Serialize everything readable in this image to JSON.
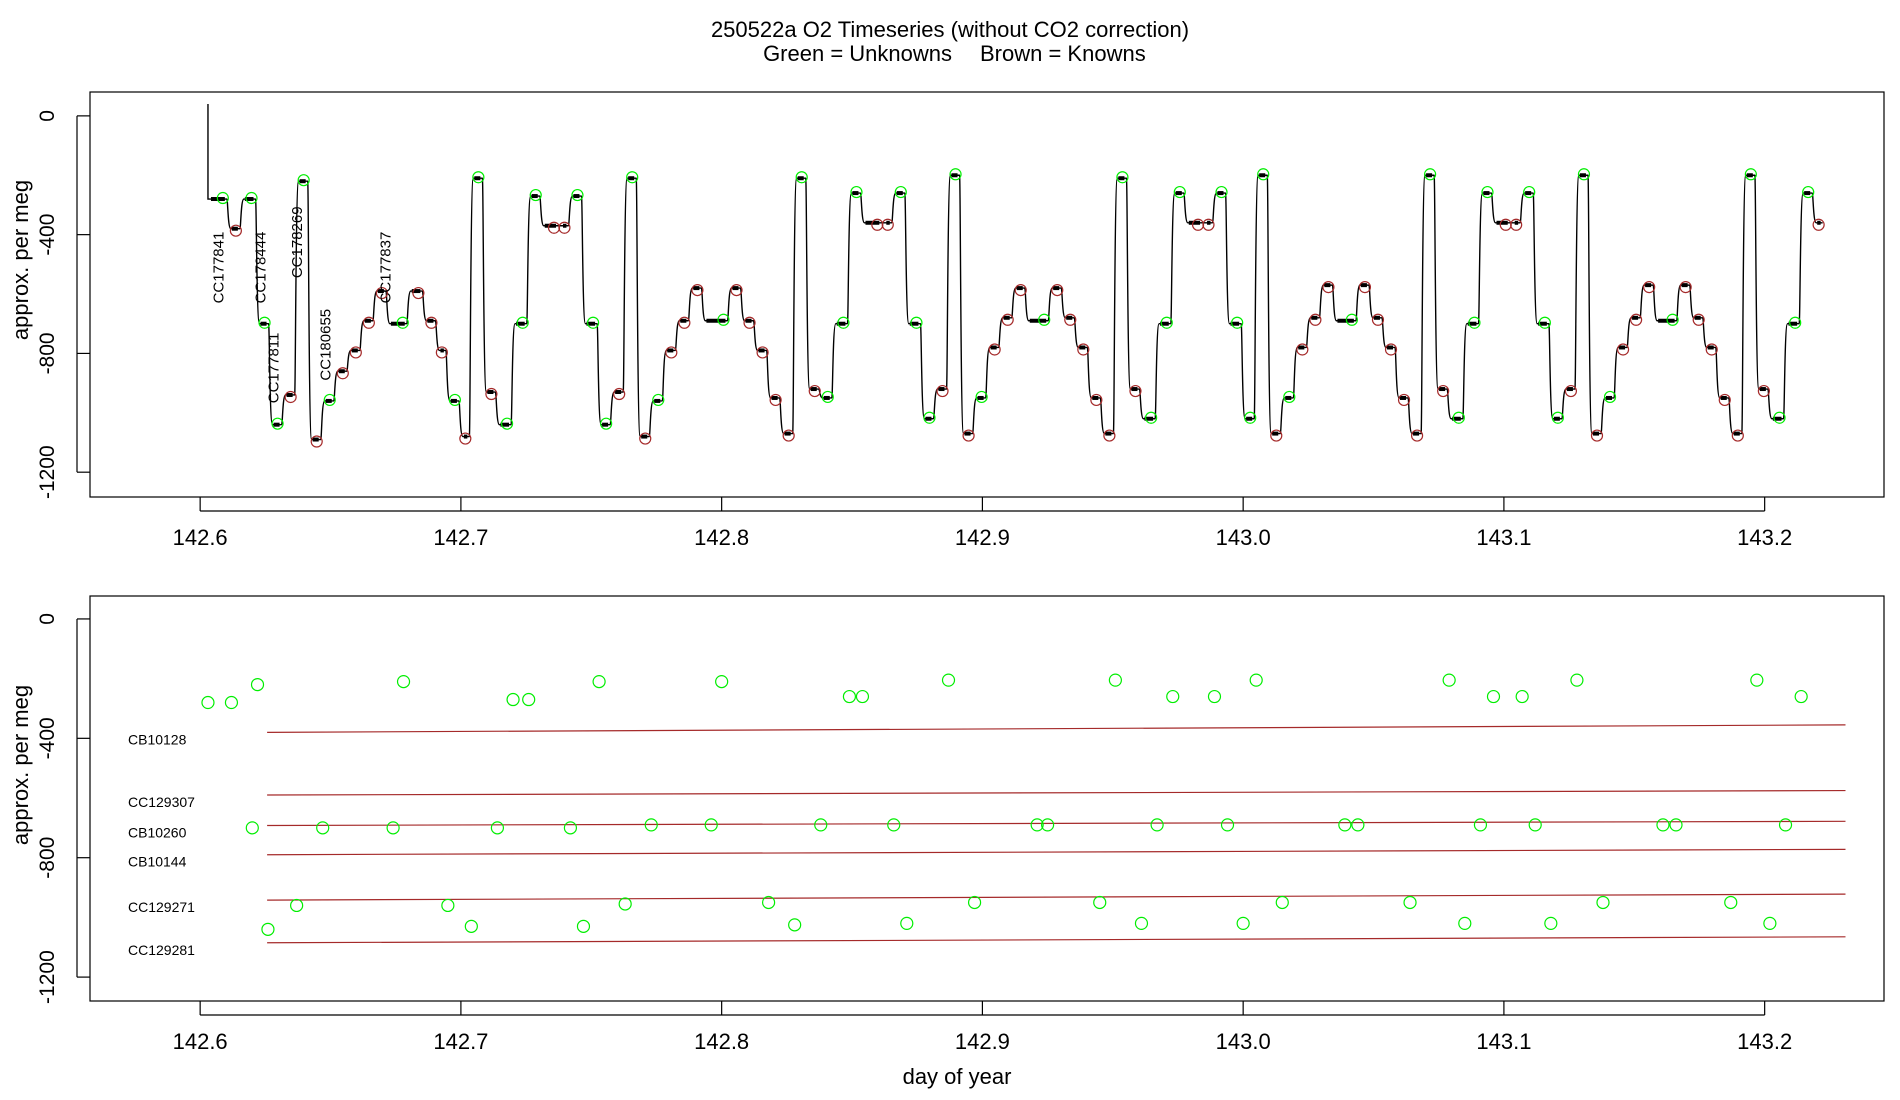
{
  "colors": {
    "unknown": "#00ee00",
    "known": "#a52a2a",
    "trace": "#000000",
    "axis": "#000000"
  },
  "chart_data": [
    {
      "type": "line",
      "panel": "top",
      "title": "250522a   O2 Timeseries (without CO2 correction)",
      "subtitle_unknowns": "Green = Unknowns",
      "subtitle_knowns": "Brown = Knowns",
      "xlabel": "",
      "ylabel": "approx. per meg",
      "xlim": [
        142.58,
        143.245
      ],
      "ylim": [
        -1260,
        40
      ],
      "x_ticks": [
        142.6,
        142.7,
        142.8,
        142.9,
        143.0,
        143.1,
        143.2
      ],
      "x_tick_labels": [
        "142.6",
        "142.7",
        "142.8",
        "142.9",
        "143.0",
        "143.1",
        "143.2"
      ],
      "y_ticks": [
        0,
        -400,
        -800,
        -1200
      ],
      "y_tick_labels": [
        "0",
        "-400",
        "-800",
        "-1200"
      ],
      "start_spike": {
        "x": 142.603,
        "y_top": 40,
        "y_start": -280
      },
      "trace_steps": [
        {
          "x": 142.603,
          "y": -280,
          "kind": "unknown"
        },
        {
          "x": 142.611,
          "y": -380,
          "kind": "known"
        },
        {
          "x": 142.616,
          "y": -280,
          "kind": "unknown"
        },
        {
          "x": 142.622,
          "y": -700,
          "kind": "unknown"
        },
        {
          "x": 142.627,
          "y": -1040,
          "kind": "unknown"
        },
        {
          "x": 142.632,
          "y": -940,
          "kind": "known"
        },
        {
          "x": 142.637,
          "y": -220,
          "kind": "unknown"
        },
        {
          "x": 142.642,
          "y": -1090,
          "kind": "known"
        },
        {
          "x": 142.647,
          "y": -960,
          "kind": "unknown"
        },
        {
          "x": 142.652,
          "y": -860,
          "kind": "known"
        },
        {
          "x": 142.657,
          "y": -790,
          "kind": "known"
        },
        {
          "x": 142.662,
          "y": -690,
          "kind": "known"
        },
        {
          "x": 142.667,
          "y": -590,
          "kind": "known"
        },
        {
          "x": 142.672,
          "y": -700,
          "kind": "unknown"
        },
        {
          "x": 142.68,
          "y": -590,
          "kind": "known"
        },
        {
          "x": 142.686,
          "y": -690,
          "kind": "known"
        },
        {
          "x": 142.691,
          "y": -790,
          "kind": "known"
        },
        {
          "x": 142.695,
          "y": -960,
          "kind": "unknown"
        },
        {
          "x": 142.7,
          "y": -1080,
          "kind": "known"
        },
        {
          "x": 142.704,
          "y": -210,
          "kind": "unknown"
        },
        {
          "x": 142.709,
          "y": -930,
          "kind": "known"
        },
        {
          "x": 142.714,
          "y": -1040,
          "kind": "unknown"
        },
        {
          "x": 142.72,
          "y": -700,
          "kind": "unknown"
        },
        {
          "x": 142.726,
          "y": -270,
          "kind": "unknown"
        },
        {
          "x": 142.731,
          "y": -370,
          "kind": "known"
        },
        {
          "x": 142.738,
          "y": -370,
          "kind": "known"
        },
        {
          "x": 142.742,
          "y": -270,
          "kind": "unknown"
        },
        {
          "x": 142.747,
          "y": -700,
          "kind": "unknown"
        },
        {
          "x": 142.753,
          "y": -1040,
          "kind": "unknown"
        },
        {
          "x": 142.758,
          "y": -930,
          "kind": "known"
        },
        {
          "x": 142.763,
          "y": -210,
          "kind": "unknown"
        },
        {
          "x": 142.768,
          "y": -1080,
          "kind": "known"
        },
        {
          "x": 142.773,
          "y": -960,
          "kind": "unknown"
        },
        {
          "x": 142.778,
          "y": -790,
          "kind": "known"
        },
        {
          "x": 142.783,
          "y": -690,
          "kind": "known"
        },
        {
          "x": 142.788,
          "y": -580,
          "kind": "known"
        },
        {
          "x": 142.793,
          "y": -690,
          "kind": "unknown"
        },
        {
          "x": 142.803,
          "y": -580,
          "kind": "known"
        },
        {
          "x": 142.808,
          "y": -690,
          "kind": "known"
        },
        {
          "x": 142.813,
          "y": -790,
          "kind": "known"
        },
        {
          "x": 142.818,
          "y": -950,
          "kind": "known"
        },
        {
          "x": 142.823,
          "y": -1070,
          "kind": "known"
        },
        {
          "x": 142.828,
          "y": -210,
          "kind": "unknown"
        },
        {
          "x": 142.833,
          "y": -920,
          "kind": "known"
        },
        {
          "x": 142.838,
          "y": -950,
          "kind": "unknown"
        },
        {
          "x": 142.843,
          "y": -700,
          "kind": "unknown"
        },
        {
          "x": 142.849,
          "y": -260,
          "kind": "unknown"
        },
        {
          "x": 142.854,
          "y": -360,
          "kind": "known"
        },
        {
          "x": 142.862,
          "y": -360,
          "kind": "known"
        },
        {
          "x": 142.866,
          "y": -260,
          "kind": "unknown"
        },
        {
          "x": 142.871,
          "y": -700,
          "kind": "unknown"
        },
        {
          "x": 142.877,
          "y": -1020,
          "kind": "unknown"
        },
        {
          "x": 142.882,
          "y": -920,
          "kind": "known"
        },
        {
          "x": 142.887,
          "y": -200,
          "kind": "unknown"
        },
        {
          "x": 142.892,
          "y": -1070,
          "kind": "known"
        },
        {
          "x": 142.897,
          "y": -950,
          "kind": "unknown"
        },
        {
          "x": 142.902,
          "y": -780,
          "kind": "known"
        },
        {
          "x": 142.907,
          "y": -680,
          "kind": "known"
        },
        {
          "x": 142.912,
          "y": -580,
          "kind": "known"
        },
        {
          "x": 142.917,
          "y": -690,
          "kind": "unknown"
        },
        {
          "x": 142.926,
          "y": -580,
          "kind": "known"
        },
        {
          "x": 142.931,
          "y": -680,
          "kind": "known"
        },
        {
          "x": 142.936,
          "y": -780,
          "kind": "known"
        },
        {
          "x": 142.941,
          "y": -950,
          "kind": "known"
        },
        {
          "x": 142.946,
          "y": -1070,
          "kind": "known"
        },
        {
          "x": 142.951,
          "y": -210,
          "kind": "unknown"
        },
        {
          "x": 142.956,
          "y": -920,
          "kind": "known"
        },
        {
          "x": 142.961,
          "y": -1020,
          "kind": "unknown"
        },
        {
          "x": 142.967,
          "y": -700,
          "kind": "unknown"
        },
        {
          "x": 142.973,
          "y": -260,
          "kind": "unknown"
        },
        {
          "x": 142.978,
          "y": -360,
          "kind": "known"
        },
        {
          "x": 142.985,
          "y": -360,
          "kind": "known"
        },
        {
          "x": 142.989,
          "y": -260,
          "kind": "unknown"
        },
        {
          "x": 142.994,
          "y": -700,
          "kind": "unknown"
        },
        {
          "x": 143.0,
          "y": -1020,
          "kind": "unknown"
        },
        {
          "x": 143.005,
          "y": -200,
          "kind": "unknown"
        },
        {
          "x": 143.01,
          "y": -1070,
          "kind": "known"
        },
        {
          "x": 143.015,
          "y": -950,
          "kind": "unknown"
        },
        {
          "x": 143.02,
          "y": -780,
          "kind": "known"
        },
        {
          "x": 143.025,
          "y": -680,
          "kind": "known"
        },
        {
          "x": 143.03,
          "y": -570,
          "kind": "known"
        },
        {
          "x": 143.035,
          "y": -690,
          "kind": "unknown"
        },
        {
          "x": 143.044,
          "y": -570,
          "kind": "known"
        },
        {
          "x": 143.049,
          "y": -680,
          "kind": "known"
        },
        {
          "x": 143.054,
          "y": -780,
          "kind": "known"
        },
        {
          "x": 143.059,
          "y": -950,
          "kind": "known"
        },
        {
          "x": 143.064,
          "y": -1070,
          "kind": "known"
        },
        {
          "x": 143.069,
          "y": -200,
          "kind": "unknown"
        },
        {
          "x": 143.074,
          "y": -920,
          "kind": "known"
        },
        {
          "x": 143.079,
          "y": -1020,
          "kind": "unknown"
        },
        {
          "x": 143.085,
          "y": -700,
          "kind": "unknown"
        },
        {
          "x": 143.091,
          "y": -260,
          "kind": "unknown"
        },
        {
          "x": 143.096,
          "y": -360,
          "kind": "known"
        },
        {
          "x": 143.103,
          "y": -360,
          "kind": "known"
        },
        {
          "x": 143.107,
          "y": -260,
          "kind": "unknown"
        },
        {
          "x": 143.112,
          "y": -700,
          "kind": "unknown"
        },
        {
          "x": 143.118,
          "y": -1020,
          "kind": "unknown"
        },
        {
          "x": 143.123,
          "y": -920,
          "kind": "known"
        },
        {
          "x": 143.128,
          "y": -200,
          "kind": "unknown"
        },
        {
          "x": 143.133,
          "y": -1070,
          "kind": "known"
        },
        {
          "x": 143.138,
          "y": -950,
          "kind": "unknown"
        },
        {
          "x": 143.143,
          "y": -780,
          "kind": "known"
        },
        {
          "x": 143.148,
          "y": -680,
          "kind": "known"
        },
        {
          "x": 143.153,
          "y": -570,
          "kind": "known"
        },
        {
          "x": 143.158,
          "y": -690,
          "kind": "unknown"
        },
        {
          "x": 143.167,
          "y": -570,
          "kind": "known"
        },
        {
          "x": 143.172,
          "y": -680,
          "kind": "known"
        },
        {
          "x": 143.177,
          "y": -780,
          "kind": "known"
        },
        {
          "x": 143.182,
          "y": -950,
          "kind": "known"
        },
        {
          "x": 143.187,
          "y": -1070,
          "kind": "known"
        },
        {
          "x": 143.192,
          "y": -200,
          "kind": "unknown"
        },
        {
          "x": 143.197,
          "y": -920,
          "kind": "known"
        },
        {
          "x": 143.202,
          "y": -1020,
          "kind": "unknown"
        },
        {
          "x": 143.208,
          "y": -700,
          "kind": "unknown"
        },
        {
          "x": 143.214,
          "y": -260,
          "kind": "unknown"
        },
        {
          "x": 143.219,
          "y": -360,
          "kind": "known"
        }
      ],
      "trace_end_x": 143.223,
      "sample_labels": [
        {
          "text": "CC177841",
          "x": 142.609,
          "y_top": -390
        },
        {
          "text": "CC178444",
          "x": 142.625,
          "y_top": -390
        },
        {
          "text": "CC178269",
          "x": 142.639,
          "y_top": -305
        },
        {
          "text": "CC177837",
          "x": 142.673,
          "y_top": -390
        },
        {
          "text": "CC177811",
          "x": 142.63,
          "y_top": -730
        },
        {
          "text": "CC180655",
          "x": 142.65,
          "y_top": -650
        }
      ]
    },
    {
      "type": "scatter",
      "panel": "bottom",
      "xlabel": "day of year",
      "ylabel": "approx. per meg",
      "xlim": [
        142.58,
        143.245
      ],
      "ylim": [
        -1260,
        40
      ],
      "x_ticks": [
        142.6,
        142.7,
        142.8,
        142.9,
        143.0,
        143.1,
        143.2
      ],
      "x_tick_labels": [
        "142.6",
        "142.7",
        "142.8",
        "142.9",
        "143.0",
        "143.1",
        "143.2"
      ],
      "y_ticks": [
        0,
        -400,
        -800,
        -1200
      ],
      "y_tick_labels": [
        "0",
        "-400",
        "-800",
        "-1200"
      ],
      "known_lines": [
        {
          "name": "CB10128",
          "x": [
            142.595,
            143.231
          ],
          "y": [
            -380,
            -355
          ]
        },
        {
          "name": "CC129307",
          "x": [
            142.595,
            143.231
          ],
          "y": [
            -590,
            -575
          ]
        },
        {
          "name": "CB10260",
          "x": [
            142.595,
            143.231
          ],
          "y": [
            -692,
            -678
          ]
        },
        {
          "name": "CB10144",
          "x": [
            142.595,
            143.231
          ],
          "y": [
            -790,
            -772
          ]
        },
        {
          "name": "CC129271",
          "x": [
            142.595,
            143.231
          ],
          "y": [
            -942,
            -922
          ]
        },
        {
          "name": "CC129281",
          "x": [
            142.595,
            143.231
          ],
          "y": [
            -1085,
            -1065
          ]
        }
      ],
      "unknown_points": {
        "x": [
          142.603,
          142.612,
          142.62,
          142.622,
          142.626,
          142.637,
          142.647,
          142.674,
          142.678,
          142.695,
          142.704,
          142.714,
          142.72,
          142.726,
          142.742,
          142.747,
          142.753,
          142.763,
          142.773,
          142.796,
          142.8,
          142.818,
          142.828,
          142.838,
          142.849,
          142.854,
          142.866,
          142.871,
          142.887,
          142.897,
          142.921,
          142.925,
          142.945,
          142.951,
          142.961,
          142.967,
          142.973,
          142.989,
          142.994,
          143.0,
          143.005,
          143.015,
          143.039,
          143.044,
          143.064,
          143.079,
          143.085,
          143.091,
          143.096,
          143.107,
          143.112,
          143.118,
          143.128,
          143.138,
          143.161,
          143.166,
          143.187,
          143.197,
          143.202,
          143.208,
          143.214
        ],
        "y": [
          -280,
          -280,
          -700,
          -220,
          -1040,
          -960,
          -700,
          -700,
          -210,
          -960,
          -1030,
          -700,
          -270,
          -270,
          -700,
          -1030,
          -210,
          -955,
          -690,
          -690,
          -210,
          -950,
          -1025,
          -690,
          -260,
          -260,
          -690,
          -1020,
          -205,
          -950,
          -690,
          -690,
          -950,
          -205,
          -1020,
          -690,
          -260,
          -260,
          -690,
          -1020,
          -205,
          -950,
          -690,
          -690,
          -950,
          -205,
          -1020,
          -690,
          -260,
          -260,
          -690,
          -1020,
          -205,
          -950,
          -690,
          -690,
          -950,
          -205,
          -1020,
          -690,
          -260
        ]
      }
    }
  ]
}
